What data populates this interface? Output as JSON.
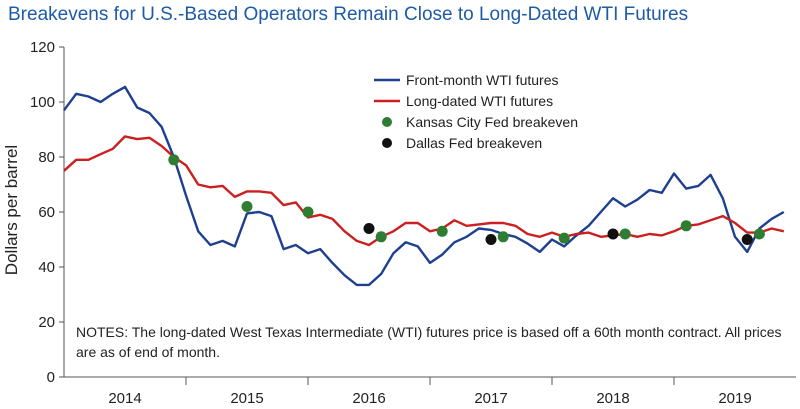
{
  "chart_data": {
    "type": "line",
    "title": "Breakevens for U.S.-Based Operators Remain Close to Long-Dated WTI Futures",
    "ylabel": "Dollars per barrel",
    "xlabel": "",
    "ylim": [
      0,
      120
    ],
    "yticks": [
      0,
      20,
      40,
      60,
      80,
      100,
      120
    ],
    "xlim": [
      2013.5,
      2019.5
    ],
    "xtick_labels": [
      {
        "label": "2014",
        "x": 2014
      },
      {
        "label": "2015",
        "x": 2015
      },
      {
        "label": "2016",
        "x": 2016
      },
      {
        "label": "2017",
        "x": 2017
      },
      {
        "label": "2018",
        "x": 2018
      },
      {
        "label": "2019",
        "x": 2019
      }
    ],
    "x_separators": [
      2014.5,
      2015.5,
      2016.5,
      2017.5,
      2018.5
    ],
    "legend": [
      {
        "label": "Front-month WTI futures",
        "kind": "line",
        "color": "#1f3f8f"
      },
      {
        "label": "Long-dated WTI futures",
        "kind": "line",
        "color": "#cc1f1f"
      },
      {
        "label": "Kansas City Fed breakeven",
        "kind": "dot",
        "color": "#2e7d32"
      },
      {
        "label": "Dallas Fed breakeven",
        "kind": "dot",
        "color": "#111111"
      }
    ],
    "series": [
      {
        "name": "Front-month WTI futures",
        "color": "#1f3f8f",
        "points": [
          [
            2013.5,
            97
          ],
          [
            2013.6,
            103
          ],
          [
            2013.7,
            102
          ],
          [
            2013.8,
            100
          ],
          [
            2013.9,
            103
          ],
          [
            2014.0,
            105.5
          ],
          [
            2014.1,
            98
          ],
          [
            2014.2,
            96
          ],
          [
            2014.3,
            91
          ],
          [
            2014.4,
            80
          ],
          [
            2014.5,
            66
          ],
          [
            2014.6,
            53
          ],
          [
            2014.7,
            48
          ],
          [
            2014.8,
            49.5
          ],
          [
            2014.9,
            47.5
          ],
          [
            2015.0,
            59.5
          ],
          [
            2015.1,
            60
          ],
          [
            2015.2,
            58.5
          ],
          [
            2015.3,
            46.5
          ],
          [
            2015.4,
            48
          ],
          [
            2015.5,
            45
          ],
          [
            2015.6,
            46.5
          ],
          [
            2015.7,
            41.5
          ],
          [
            2015.8,
            37
          ],
          [
            2015.9,
            33.5
          ],
          [
            2016.0,
            33.5
          ],
          [
            2016.1,
            37.5
          ],
          [
            2016.2,
            45
          ],
          [
            2016.3,
            49
          ],
          [
            2016.4,
            47.5
          ],
          [
            2016.5,
            41.5
          ],
          [
            2016.6,
            44.5
          ],
          [
            2016.7,
            49
          ],
          [
            2016.8,
            51
          ],
          [
            2016.9,
            54
          ],
          [
            2017.0,
            53.5
          ],
          [
            2017.1,
            52
          ],
          [
            2017.2,
            51
          ],
          [
            2017.3,
            48.5
          ],
          [
            2017.4,
            45.5
          ],
          [
            2017.5,
            50
          ],
          [
            2017.6,
            47.5
          ],
          [
            2017.7,
            51.5
          ],
          [
            2017.8,
            55
          ],
          [
            2017.9,
            60
          ],
          [
            2018.0,
            65
          ],
          [
            2018.1,
            62
          ],
          [
            2018.2,
            64.5
          ],
          [
            2018.3,
            68
          ],
          [
            2018.4,
            67
          ],
          [
            2018.5,
            74
          ],
          [
            2018.6,
            68.5
          ],
          [
            2018.7,
            69.5
          ],
          [
            2018.8,
            73.5
          ],
          [
            2018.9,
            65
          ],
          [
            2019.0,
            51
          ],
          [
            2019.1,
            45.5
          ],
          [
            2019.2,
            54
          ],
          [
            2019.3,
            57.5
          ],
          [
            2019.4,
            60
          ]
        ]
      },
      {
        "name": "Long-dated WTI futures",
        "color": "#cc1f1f",
        "points": [
          [
            2013.5,
            75
          ],
          [
            2013.6,
            79
          ],
          [
            2013.7,
            79
          ],
          [
            2013.8,
            81
          ],
          [
            2013.9,
            83
          ],
          [
            2014.0,
            87.5
          ],
          [
            2014.1,
            86.5
          ],
          [
            2014.2,
            87
          ],
          [
            2014.3,
            84
          ],
          [
            2014.4,
            80
          ],
          [
            2014.5,
            77
          ],
          [
            2014.6,
            70
          ],
          [
            2014.7,
            69
          ],
          [
            2014.8,
            69.5
          ],
          [
            2014.9,
            65.5
          ],
          [
            2015.0,
            67.5
          ],
          [
            2015.1,
            67.5
          ],
          [
            2015.2,
            67
          ],
          [
            2015.3,
            62.5
          ],
          [
            2015.4,
            63.5
          ],
          [
            2015.5,
            58
          ],
          [
            2015.6,
            59
          ],
          [
            2015.7,
            57.5
          ],
          [
            2015.8,
            53
          ],
          [
            2015.9,
            49.5
          ],
          [
            2016.0,
            48
          ],
          [
            2016.1,
            51
          ],
          [
            2016.2,
            53
          ],
          [
            2016.3,
            56
          ],
          [
            2016.4,
            56
          ],
          [
            2016.5,
            53
          ],
          [
            2016.6,
            54
          ],
          [
            2016.7,
            57
          ],
          [
            2016.8,
            55
          ],
          [
            2016.9,
            55.5
          ],
          [
            2017.0,
            56
          ],
          [
            2017.1,
            56
          ],
          [
            2017.2,
            55
          ],
          [
            2017.3,
            52
          ],
          [
            2017.4,
            51
          ],
          [
            2017.5,
            52.5
          ],
          [
            2017.6,
            51
          ],
          [
            2017.7,
            52
          ],
          [
            2017.8,
            52.5
          ],
          [
            2017.9,
            51
          ],
          [
            2018.0,
            51.5
          ],
          [
            2018.1,
            52
          ],
          [
            2018.2,
            51
          ],
          [
            2018.3,
            52
          ],
          [
            2018.4,
            51.5
          ],
          [
            2018.5,
            53
          ],
          [
            2018.6,
            55
          ],
          [
            2018.7,
            55.5
          ],
          [
            2018.8,
            57
          ],
          [
            2018.9,
            58.5
          ],
          [
            2019.0,
            56
          ],
          [
            2019.1,
            52.5
          ],
          [
            2019.2,
            52.5
          ],
          [
            2019.3,
            54
          ],
          [
            2019.4,
            53
          ]
        ]
      }
    ],
    "scatter": [
      {
        "name": "Kansas City Fed breakeven",
        "color": "#2e7d32",
        "points": [
          [
            2014.4,
            79
          ],
          [
            2015.0,
            62
          ],
          [
            2015.5,
            60
          ],
          [
            2016.1,
            51
          ],
          [
            2016.6,
            53
          ],
          [
            2017.1,
            51
          ],
          [
            2017.6,
            50.5
          ],
          [
            2018.1,
            52
          ],
          [
            2018.6,
            55
          ],
          [
            2019.2,
            52
          ]
        ]
      },
      {
        "name": "Dallas Fed breakeven",
        "color": "#111111",
        "points": [
          [
            2016.0,
            54
          ],
          [
            2017.0,
            50
          ],
          [
            2018.0,
            52
          ],
          [
            2019.1,
            50
          ]
        ]
      }
    ],
    "notes": "NOTES: The long-dated West Texas Intermediate (WTI) futures price is based off a 60th month contract. All prices are as of end of month."
  }
}
